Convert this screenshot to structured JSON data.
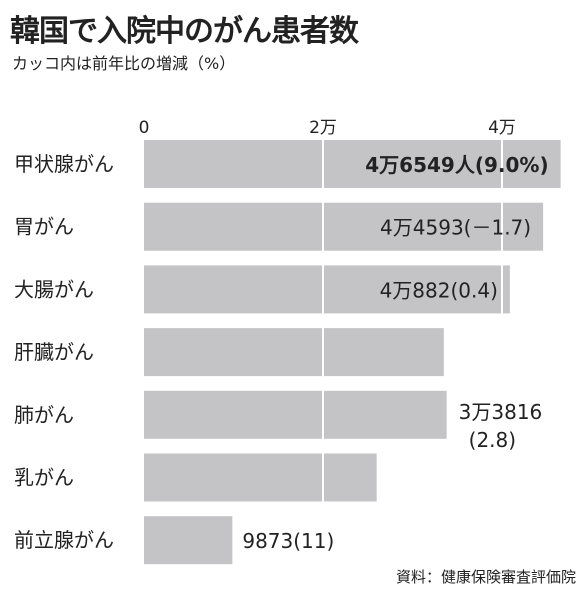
{
  "chart_data": {
    "type": "bar",
    "orientation": "horizontal",
    "title": "韓国で入院中のがん患者数",
    "subtitle": "カッコ内は前年比の増減（%）",
    "categories": [
      "甲状腺がん",
      "胃がん",
      "大腸がん",
      "肝臓がん",
      "肺がん",
      "乳がん",
      "前立腺がん"
    ],
    "values": [
      46549,
      44593,
      40882,
      33500,
      33816,
      26000,
      9873
    ],
    "value_labels": [
      [
        "4万6549人(9.0%)"
      ],
      [
        "4万4593(－1.7)"
      ],
      [
        "4万882(0.4)"
      ],
      [],
      [
        "3万3816",
        "(2.8)"
      ],
      [],
      [
        "9873(11)"
      ]
    ],
    "xticks": [
      {
        "value": 0,
        "label": "0"
      },
      {
        "value": 20000,
        "label": "2万"
      },
      {
        "value": 40000,
        "label": "4万"
      }
    ],
    "xlim": [
      0,
      47000
    ],
    "grid": true,
    "colors": {
      "bar": "#c4c4c6",
      "grid": "#ffffff",
      "text": "#222222"
    }
  },
  "source": "資料：健康保険審査評価院"
}
